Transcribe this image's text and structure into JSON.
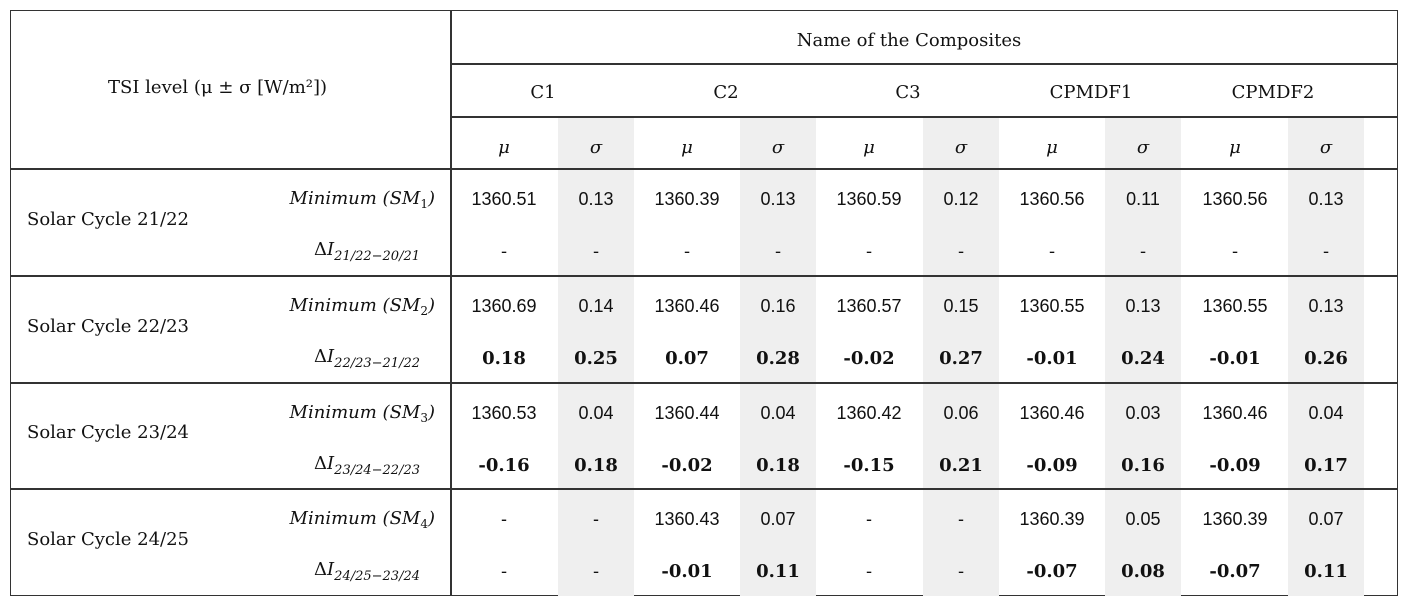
{
  "header": {
    "tsi_label": "TSI level (μ ± σ [W/m²])",
    "composites_title": "Name of the Composites",
    "composites": [
      "C1",
      "C2",
      "C3",
      "CPMDF1",
      "CPMDF2"
    ],
    "mu_symbol": "μ",
    "sigma_symbol": "σ"
  },
  "rows": [
    {
      "cycle": "Solar Cycle 21/22",
      "min_label": "Minimum",
      "min_sym": "SM",
      "min_sub": "1",
      "delta_sub": "21/22−20/21",
      "minimum": [
        "1360.51",
        "0.13",
        "1360.39",
        "0.13",
        "1360.59",
        "0.12",
        "1360.56",
        "0.11",
        "1360.56",
        "0.13"
      ],
      "delta": [
        "-",
        "-",
        "-",
        "-",
        "-",
        "-",
        "-",
        "-",
        "-",
        "-"
      ]
    },
    {
      "cycle": "Solar Cycle 22/23",
      "min_label": "Minimum",
      "min_sym": "SM",
      "min_sub": "2",
      "delta_sub": "22/23−21/22",
      "minimum": [
        "1360.69",
        "0.14",
        "1360.46",
        "0.16",
        "1360.57",
        "0.15",
        "1360.55",
        "0.13",
        "1360.55",
        "0.13"
      ],
      "delta": [
        "0.18",
        "0.25",
        "0.07",
        "0.28",
        "-0.02",
        "0.27",
        "-0.01",
        "0.24",
        "-0.01",
        "0.26"
      ]
    },
    {
      "cycle": "Solar Cycle 23/24",
      "min_label": "Minimum",
      "min_sym": "SM",
      "min_sub": "3",
      "delta_sub": "23/24−22/23",
      "minimum": [
        "1360.53",
        "0.04",
        "1360.44",
        "0.04",
        "1360.42",
        "0.06",
        "1360.46",
        "0.03",
        "1360.46",
        "0.04"
      ],
      "delta": [
        "-0.16",
        "0.18",
        "-0.02",
        "0.18",
        "-0.15",
        "0.21",
        "-0.09",
        "0.16",
        "-0.09",
        "0.17"
      ]
    },
    {
      "cycle": "Solar Cycle 24/25",
      "min_label": "Minimum",
      "min_sym": "SM",
      "min_sub": "4",
      "delta_sub": "24/25−23/24",
      "minimum": [
        "-",
        "-",
        "1360.43",
        "0.07",
        "-",
        "-",
        "1360.39",
        "0.05",
        "1360.39",
        "0.07"
      ],
      "delta": [
        "-",
        "-",
        "-0.01",
        "0.11",
        "-",
        "-",
        "-0.07",
        "0.08",
        "-0.07",
        "0.11"
      ]
    }
  ]
}
